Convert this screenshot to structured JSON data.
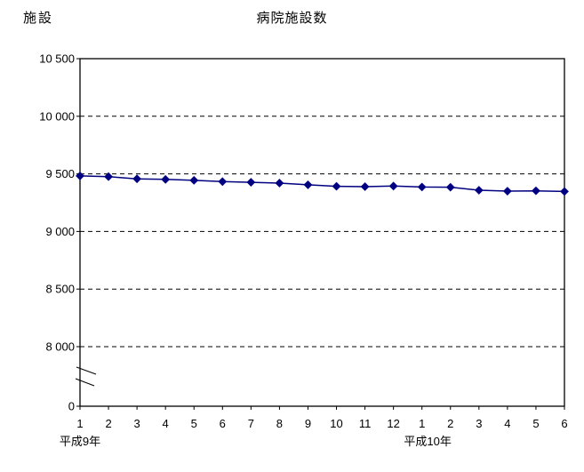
{
  "page": {
    "unit_label": "施設",
    "title": "病院施設数"
  },
  "chart_data": {
    "type": "line",
    "title": "病院施設数",
    "ylabel": "施設",
    "xlabel": "",
    "legend": "none",
    "grid": "dashed-horizontal",
    "x_categories": [
      "1",
      "2",
      "3",
      "4",
      "5",
      "6",
      "7",
      "8",
      "9",
      "10",
      "11",
      "12",
      "1",
      "2",
      "3",
      "4",
      "5",
      "6"
    ],
    "x_era_labels": [
      {
        "label": "平成9年",
        "center_index": 0
      },
      {
        "label": "平成10年",
        "center_index": 12.2
      }
    ],
    "series": [
      {
        "name": "病院施設数",
        "marker": "diamond",
        "color": "#000080",
        "values": [
          9482,
          9476,
          9457,
          9452,
          9444,
          9433,
          9427,
          9420,
          9405,
          9392,
          9389,
          9394,
          9386,
          9384,
          9358,
          9350,
          9353,
          9347
        ]
      }
    ],
    "y_axis": {
      "max": 10500,
      "min_plotted": 8000,
      "axis_break_between": [
        0,
        8000
      ],
      "tick_step": 500,
      "ticks": [
        {
          "value": 10500,
          "label": "10 500"
        },
        {
          "value": 10000,
          "label": "10 000"
        },
        {
          "value": 9500,
          "label": "9 500"
        },
        {
          "value": 9000,
          "label": "9 000"
        },
        {
          "value": 8500,
          "label": "8 500"
        },
        {
          "value": 8000,
          "label": "8 000"
        },
        {
          "value": 0,
          "label": "0"
        }
      ],
      "gridline_values": [
        10000,
        9500,
        9000,
        8500,
        8000
      ]
    },
    "colors": {
      "line": "#000080",
      "axis": "#000000",
      "grid": "#000000",
      "background": "#ffffff"
    }
  }
}
